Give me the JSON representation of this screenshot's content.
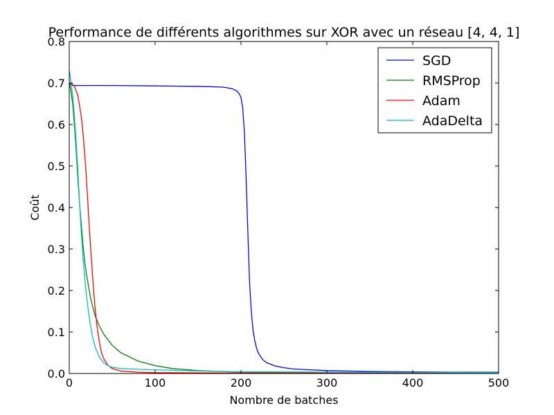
{
  "chart_data": {
    "type": "line",
    "title": "Performance de différents algorithmes sur XOR avec un réseau [4, 4, 1]",
    "xlabel": "Nombre de batches",
    "ylabel": "Coût",
    "xlim": [
      0,
      500
    ],
    "ylim": [
      0,
      0.8
    ],
    "xticks": [
      "0",
      "100",
      "200",
      "300",
      "400",
      "500"
    ],
    "yticks": [
      "0.0",
      "0.1",
      "0.2",
      "0.3",
      "0.4",
      "0.5",
      "0.6",
      "0.7",
      "0.8"
    ],
    "grid": false,
    "legend_position": "top-right",
    "series": [
      {
        "name": "SGD",
        "color": "#0000ff",
        "x": [
          0,
          2,
          5,
          20,
          50,
          100,
          150,
          180,
          190,
          195,
          198,
          200,
          202,
          204,
          206,
          208,
          210,
          212,
          214,
          216,
          218,
          220,
          225,
          230,
          240,
          250,
          260,
          280,
          300,
          350,
          400,
          450,
          500
        ],
        "y": [
          0.7,
          0.695,
          0.694,
          0.694,
          0.694,
          0.693,
          0.692,
          0.69,
          0.686,
          0.681,
          0.674,
          0.665,
          0.64,
          0.58,
          0.47,
          0.34,
          0.22,
          0.15,
          0.105,
          0.08,
          0.062,
          0.05,
          0.034,
          0.026,
          0.018,
          0.014,
          0.011,
          0.009,
          0.007,
          0.005,
          0.004,
          0.003,
          0.003
        ]
      },
      {
        "name": "RMSProp",
        "color": "#008000",
        "x": [
          0,
          2,
          4,
          6,
          8,
          10,
          12,
          14,
          16,
          18,
          20,
          25,
          30,
          35,
          40,
          50,
          60,
          80,
          100,
          120,
          150,
          200,
          250,
          300,
          400,
          500
        ],
        "y": [
          0.7,
          0.68,
          0.65,
          0.6,
          0.54,
          0.47,
          0.41,
          0.36,
          0.31,
          0.27,
          0.24,
          0.18,
          0.14,
          0.115,
          0.095,
          0.068,
          0.05,
          0.03,
          0.019,
          0.012,
          0.007,
          0.003,
          0.002,
          0.001,
          0.001,
          0.001
        ]
      },
      {
        "name": "Adam",
        "color": "#ff0000",
        "x": [
          0,
          3,
          6,
          10,
          14,
          16,
          18,
          20,
          22,
          24,
          26,
          28,
          30,
          32,
          34,
          36,
          38,
          40,
          45,
          50,
          60,
          80,
          100,
          200,
          500
        ],
        "y": [
          0.7,
          0.698,
          0.692,
          0.67,
          0.62,
          0.58,
          0.53,
          0.47,
          0.4,
          0.33,
          0.27,
          0.21,
          0.16,
          0.12,
          0.09,
          0.065,
          0.048,
          0.036,
          0.02,
          0.012,
          0.006,
          0.003,
          0.002,
          0.001,
          0.001
        ]
      },
      {
        "name": "AdaDelta",
        "color": "#00bfbf",
        "x": [
          0,
          1,
          2,
          4,
          6,
          8,
          10,
          12,
          14,
          16,
          18,
          20,
          22,
          24,
          27,
          30,
          35,
          40,
          45,
          50,
          60,
          70,
          80,
          100,
          150,
          200,
          500
        ],
        "y": [
          0.73,
          0.72,
          0.7,
          0.67,
          0.62,
          0.56,
          0.49,
          0.41,
          0.34,
          0.28,
          0.23,
          0.19,
          0.155,
          0.125,
          0.09,
          0.065,
          0.04,
          0.026,
          0.019,
          0.015,
          0.012,
          0.011,
          0.01,
          0.009,
          0.006,
          0.004,
          0.002
        ]
      }
    ]
  }
}
